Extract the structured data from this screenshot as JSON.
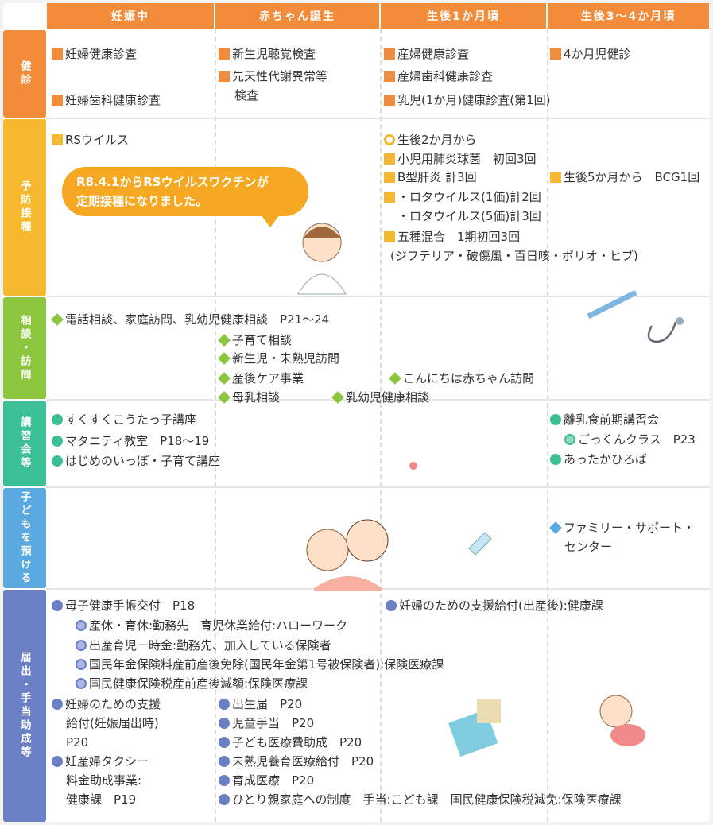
{
  "header": {
    "columns": [
      "妊娠中",
      "赤ちゃん誕生",
      "生後1か月頃",
      "生後3～4か月頃"
    ]
  },
  "bubble": {
    "lines": [
      "R8.4.1からRSウイルスワクチンが",
      "定期接種になりました。"
    ]
  },
  "sections": [
    {
      "label": "健診",
      "items": [
        {
          "lines": [
            "妊婦健康診査"
          ]
        },
        {
          "lines": [
            "妊婦歯科健康診査"
          ]
        },
        {
          "lines": [
            "新生児聴覚検査"
          ]
        },
        {
          "lines": [
            "先天性代謝異常等",
            "検査"
          ]
        },
        {
          "lines": [
            "産婦健康診査"
          ]
        },
        {
          "lines": [
            "産婦歯科健康診査"
          ]
        },
        {
          "lines": [
            "乳児(1か月)健康診査(第1回)"
          ]
        },
        {
          "lines": [
            "4か月児健診"
          ]
        }
      ]
    },
    {
      "label": "予防接種",
      "items": [
        {
          "lines": [
            "RSウイルス"
          ]
        },
        {
          "lines": [
            "生後2か月から"
          ]
        },
        {
          "lines": [
            "小児用肺炎球菌　初回3回"
          ]
        },
        {
          "lines": [
            "B型肝炎 計3回"
          ]
        },
        {
          "lines": [
            "・ロタウイルス(1価)計2回",
            "・ロタウイルス(5価)計3回"
          ]
        },
        {
          "lines": [
            "五種混合　1期初回3回",
            "(ジフテリア・破傷風・百日咳・ポリオ・ヒブ)"
          ]
        },
        {
          "lines": [
            "生後5か月から　BCG1回"
          ]
        }
      ]
    },
    {
      "label": "相談・訪問",
      "items": [
        {
          "lines": [
            "電話相談、家庭訪問、乳幼児健康相談　P21～24"
          ]
        },
        {
          "lines": [
            "子育て相談"
          ]
        },
        {
          "lines": [
            "新生児・未熟児訪問"
          ]
        },
        {
          "lines": [
            "産後ケア事業"
          ]
        },
        {
          "lines": [
            "こんにちは赤ちゃん訪問"
          ]
        },
        {
          "lines": [
            "母乳相談"
          ]
        },
        {
          "lines": [
            "乳幼児健康相談"
          ]
        }
      ]
    },
    {
      "label": "講習会等",
      "items": [
        {
          "lines": [
            "すくすくこうたっ子講座"
          ]
        },
        {
          "lines": [
            "マタニティ教室　P18～19"
          ]
        },
        {
          "lines": [
            "はじめのいっぽ・子育て講座"
          ]
        },
        {
          "lines": [
            "離乳食前期講習会"
          ]
        },
        {
          "lines": [
            "ごっくんクラス　P23"
          ]
        },
        {
          "lines": [
            "あったかひろば"
          ]
        }
      ]
    },
    {
      "label": "子どもを預ける",
      "items": [
        {
          "lines": [
            "ファミリー・サポート・",
            "センター"
          ]
        }
      ]
    },
    {
      "label": "届出・手当助成等",
      "items": [
        {
          "lines": [
            "母子健康手帳交付　P18"
          ]
        },
        {
          "lines": [
            "妊婦のための支援給付(出産後):健康課"
          ]
        },
        {
          "lines": [
            "産休・育休:勤務先　育児休業給付:ハローワーク"
          ]
        },
        {
          "lines": [
            "出産育児一時金:勤務先、加入している保険者"
          ]
        },
        {
          "lines": [
            "国民年金保険料産前産後免除(国民年金第1号被保険者):保険医療課"
          ]
        },
        {
          "lines": [
            "国民健康保険税産前産後減額:保険医療課"
          ]
        },
        {
          "lines": [
            "妊婦のための支援",
            "給付(妊娠届出時)",
            "P20"
          ]
        },
        {
          "lines": [
            "妊産婦タクシー",
            "料金助成事業:",
            "健康課　P19"
          ]
        },
        {
          "lines": [
            "出生届　P20"
          ]
        },
        {
          "lines": [
            "児童手当　P20"
          ]
        },
        {
          "lines": [
            "子ども医療費助成　P20"
          ]
        },
        {
          "lines": [
            "未熟児養育医療給付　P20"
          ]
        },
        {
          "lines": [
            "育成医療　P20"
          ]
        },
        {
          "lines": [
            "ひとり親家庭への制度　手当:こども課　国民健康保険税減免:保険医療課"
          ]
        }
      ]
    }
  ]
}
